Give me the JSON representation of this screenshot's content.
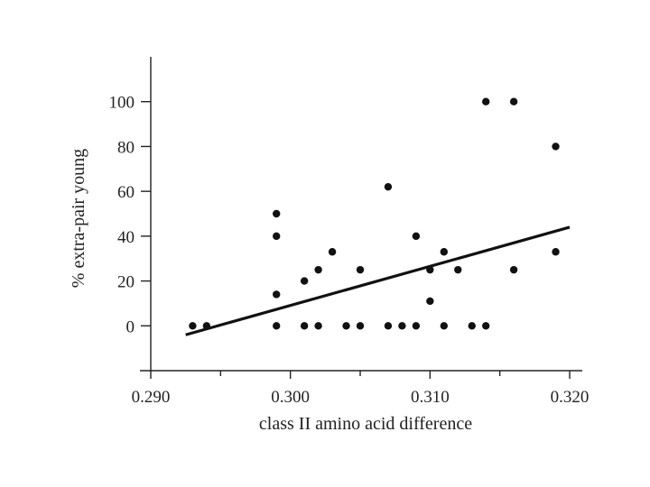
{
  "chart_data": {
    "type": "scatter",
    "title": "",
    "xlabel": "class II amino acid difference",
    "ylabel": "% extra-pair young",
    "xlim": [
      0.29,
      0.32
    ],
    "ylim": [
      -20,
      120
    ],
    "x_ticks": [
      0.29,
      0.3,
      0.31,
      0.32
    ],
    "x_tick_labels": [
      "0.290",
      "0.300",
      "0.310",
      "0.320"
    ],
    "x_minor_ticks": [
      0.295,
      0.305,
      0.315
    ],
    "y_ticks": [
      0,
      20,
      40,
      60,
      80,
      100
    ],
    "y_tick_labels": [
      "0",
      "20",
      "40",
      "60",
      "80",
      "100"
    ],
    "grid": false,
    "legend": "none",
    "points": [
      {
        "x": 0.293,
        "y": 0
      },
      {
        "x": 0.294,
        "y": 0
      },
      {
        "x": 0.299,
        "y": 50
      },
      {
        "x": 0.299,
        "y": 40
      },
      {
        "x": 0.299,
        "y": 14
      },
      {
        "x": 0.299,
        "y": 0
      },
      {
        "x": 0.301,
        "y": 20
      },
      {
        "x": 0.301,
        "y": 0
      },
      {
        "x": 0.302,
        "y": 25
      },
      {
        "x": 0.302,
        "y": 0
      },
      {
        "x": 0.303,
        "y": 33
      },
      {
        "x": 0.304,
        "y": 0
      },
      {
        "x": 0.305,
        "y": 25
      },
      {
        "x": 0.305,
        "y": 0
      },
      {
        "x": 0.307,
        "y": 62
      },
      {
        "x": 0.307,
        "y": 0
      },
      {
        "x": 0.308,
        "y": 0
      },
      {
        "x": 0.309,
        "y": 40
      },
      {
        "x": 0.309,
        "y": 0
      },
      {
        "x": 0.31,
        "y": 25
      },
      {
        "x": 0.31,
        "y": 11
      },
      {
        "x": 0.311,
        "y": 33
      },
      {
        "x": 0.311,
        "y": 0
      },
      {
        "x": 0.312,
        "y": 25
      },
      {
        "x": 0.313,
        "y": 0
      },
      {
        "x": 0.314,
        "y": 100
      },
      {
        "x": 0.314,
        "y": 0
      },
      {
        "x": 0.316,
        "y": 100
      },
      {
        "x": 0.316,
        "y": 25
      },
      {
        "x": 0.319,
        "y": 80
      },
      {
        "x": 0.319,
        "y": 33
      }
    ],
    "fit_line": {
      "x": [
        0.2925,
        0.32
      ],
      "y": [
        -4,
        44
      ]
    },
    "colors": {
      "points": "#111111",
      "fit_line": "#111111",
      "axes": "#222222"
    }
  }
}
